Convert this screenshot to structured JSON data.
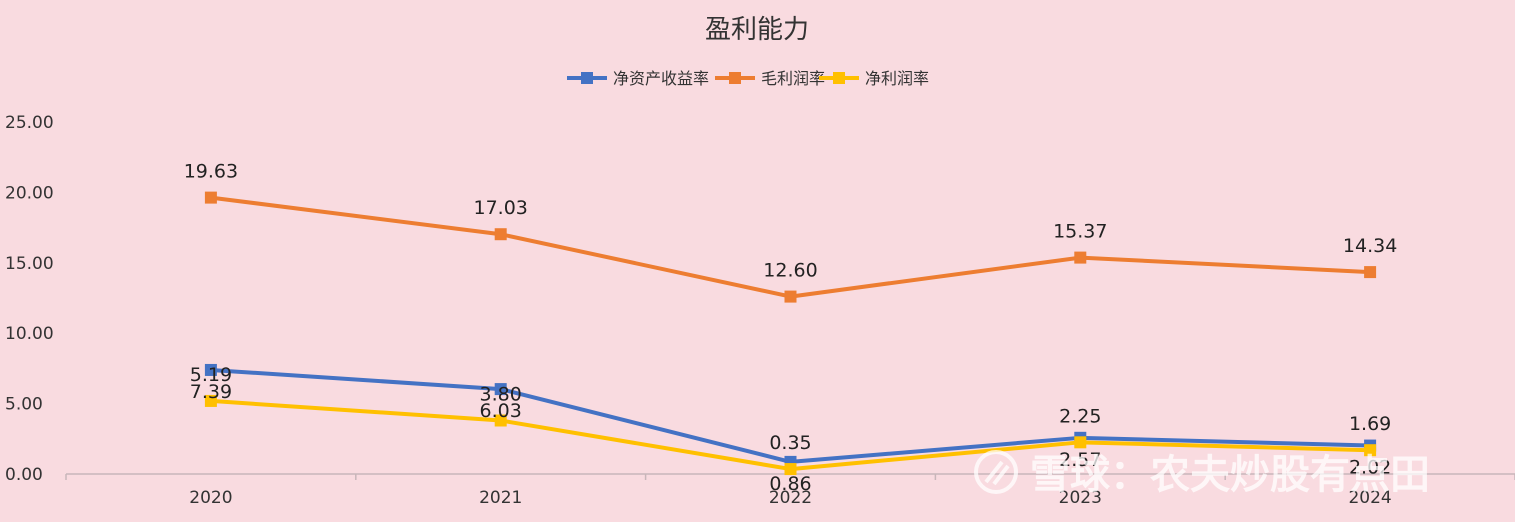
{
  "chart_data": {
    "type": "line",
    "title": "盈利能力",
    "categories": [
      "2020",
      "2021",
      "2022",
      "2023",
      "2024"
    ],
    "ylim": [
      0,
      25
    ],
    "yticks": [
      "0.00",
      "5.00",
      "10.00",
      "15.00",
      "20.00",
      "25.00"
    ],
    "legend_position": "top",
    "grid": false,
    "series": [
      {
        "name": "净资产收益率",
        "color": "#4472c4",
        "values": [
          7.39,
          6.03,
          0.86,
          2.57,
          2.02
        ],
        "labels": [
          "7.39",
          "6.03",
          "0.86",
          "2.57",
          "2.02"
        ]
      },
      {
        "name": "毛利润率",
        "color": "#ed7d31",
        "values": [
          19.63,
          17.03,
          12.6,
          15.37,
          14.34
        ],
        "labels": [
          "19.63",
          "17.03",
          "12.60",
          "15.37",
          "14.34"
        ]
      },
      {
        "name": "净利润率",
        "color": "#ffc000",
        "values": [
          5.19,
          3.8,
          0.35,
          2.25,
          1.69
        ],
        "labels": [
          "5.19",
          "3.80",
          "0.35",
          "2.25",
          "1.69"
        ]
      }
    ]
  },
  "watermark": {
    "text": "雪球：农夫炒股有点田"
  }
}
